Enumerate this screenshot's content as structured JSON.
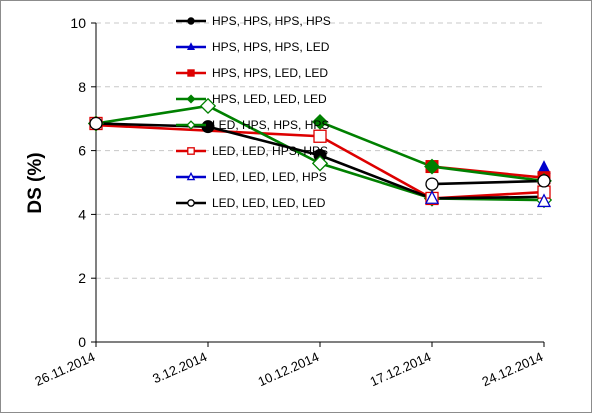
{
  "chart_data": {
    "type": "line",
    "x": [
      "26.11.2014",
      "3.12.2014",
      "10.12.2014",
      "17.12.2014",
      "24.12.2014"
    ],
    "ylabel": "DS (%)",
    "xlabel": "",
    "ylim": [
      0,
      10
    ],
    "yticks": [
      0,
      2,
      4,
      6,
      8,
      10
    ],
    "grid": "horizontal dashed",
    "legend_position": "top-center",
    "series": [
      {
        "name": "HPS, HPS, HPS, HPS",
        "color": "#000000",
        "marker": "filled-circle",
        "values": [
          6.85,
          6.75,
          5.85,
          null,
          null
        ]
      },
      {
        "name": "HPS, HPS, HPS, LED",
        "color": "#0000cc",
        "marker": "filled-triangle",
        "values": [
          null,
          null,
          null,
          null,
          5.45
        ]
      },
      {
        "name": "HPS, HPS, LED, LED",
        "color": "#dd0000",
        "marker": "filled-square",
        "values": [
          null,
          null,
          null,
          5.5,
          5.15
        ]
      },
      {
        "name": "HPS, LED, LED, LED",
        "color": "#008000",
        "marker": "filled-diamond",
        "values": [
          6.85,
          null,
          6.9,
          5.5,
          5.05
        ]
      },
      {
        "name": "LED, HPS, HPS, HPS",
        "color": "#008000",
        "marker": "open-diamond",
        "values": [
          6.85,
          7.4,
          5.6,
          4.5,
          4.45
        ]
      },
      {
        "name": "LED, LED, HPS, HPS",
        "color": "#dd0000",
        "marker": "open-square",
        "values": [
          6.85,
          null,
          6.45,
          4.5,
          4.7
        ]
      },
      {
        "name": "LED, LED, LED, HPS",
        "color": "#0000cc",
        "marker": "open-triangle",
        "values": [
          null,
          null,
          null,
          4.5,
          4.4
        ]
      },
      {
        "name": "LED, LED, LED, LED",
        "color": "#000000",
        "marker": "open-circle",
        "values": [
          6.85,
          null,
          null,
          4.95,
          5.05
        ]
      }
    ],
    "draw_lines": [
      {
        "color": "#dd0000",
        "points": [
          [
            0,
            6.8
          ],
          [
            2,
            6.45
          ],
          [
            3,
            4.5
          ],
          [
            4,
            4.7
          ]
        ]
      },
      {
        "color": "#dd0000",
        "points": [
          [
            3,
            5.5
          ],
          [
            4,
            5.15
          ]
        ]
      },
      {
        "color": "#008000",
        "points": [
          [
            0,
            6.85
          ],
          [
            1,
            7.4
          ],
          [
            2,
            5.6
          ],
          [
            3,
            4.5
          ],
          [
            4,
            4.45
          ]
        ]
      },
      {
        "color": "#008000",
        "points": [
          [
            2,
            6.9
          ],
          [
            3,
            5.5
          ],
          [
            4,
            5.05
          ]
        ]
      },
      {
        "color": "#000000",
        "points": [
          [
            0,
            6.85
          ],
          [
            1,
            6.75
          ],
          [
            2,
            5.85
          ],
          [
            3,
            4.5
          ],
          [
            4,
            4.55
          ]
        ]
      },
      {
        "color": "#000000",
        "points": [
          [
            3,
            4.95
          ],
          [
            4,
            5.05
          ]
        ]
      }
    ]
  }
}
